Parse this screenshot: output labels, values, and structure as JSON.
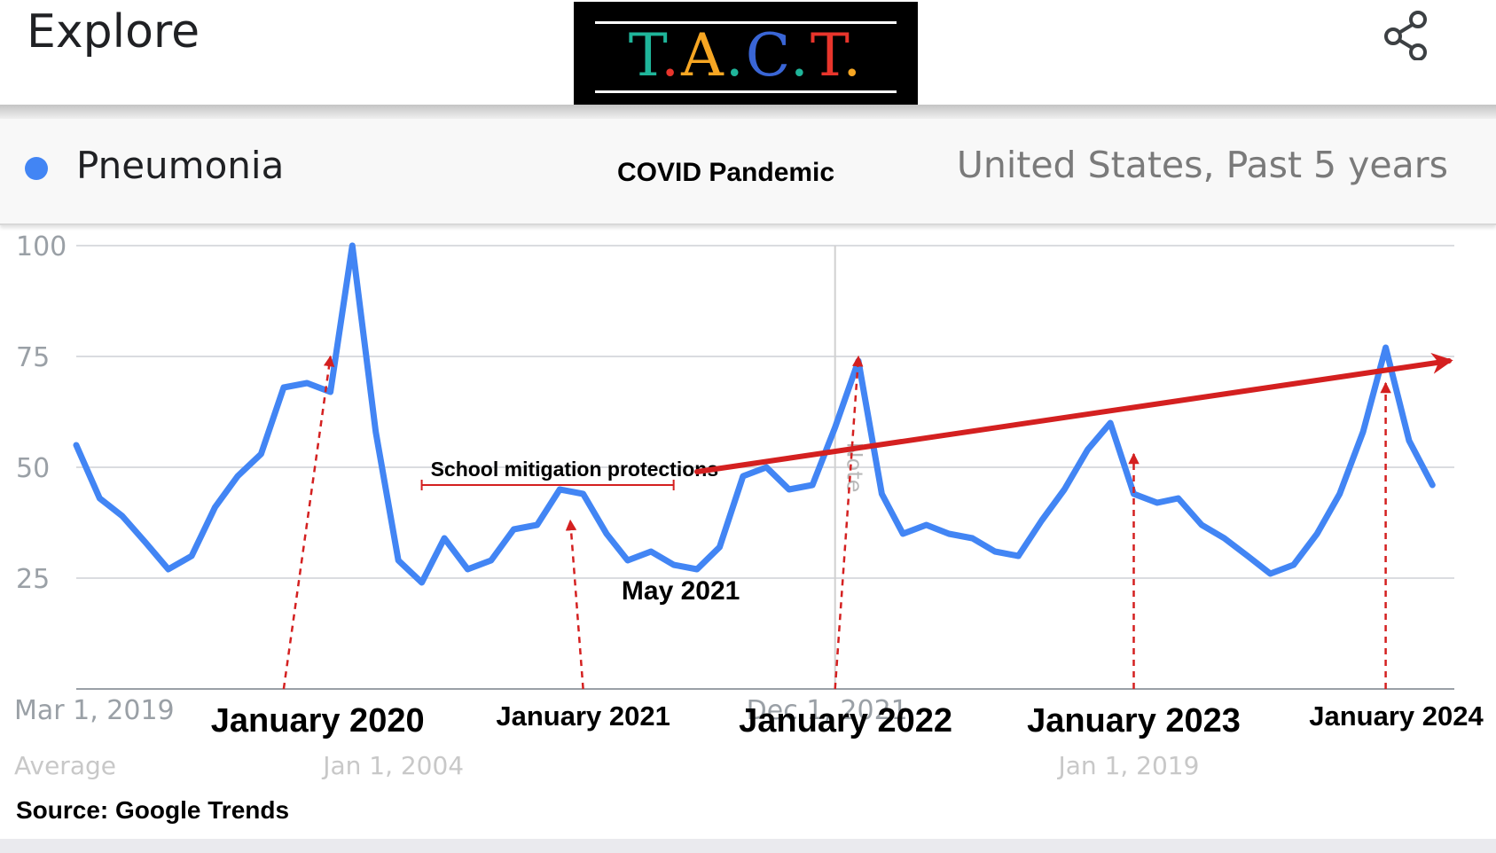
{
  "header": {
    "title": "Explore",
    "logo_text": "T.A.C.T.",
    "logo_colors": [
      "#1fb59a",
      "#e8352c",
      "#f6a623",
      "#1fb59a",
      "#3a66d6"
    ],
    "share_icon": "share-icon"
  },
  "legend": {
    "term": "Pneumonia",
    "term_color": "#4285f4",
    "scope": "United States, Past 5 years"
  },
  "chart_data": {
    "type": "line",
    "title": "COVID Pandemic",
    "xlabel": "",
    "ylabel": "",
    "ylim": [
      0,
      100
    ],
    "yticks": [
      25,
      50,
      75,
      100
    ],
    "grid": true,
    "x_range": [
      "2019-03-01",
      "2024-03-01"
    ],
    "x_tick_labels": [
      {
        "text": "Mar 1, 2019",
        "date": "2019-03-01"
      },
      {
        "text": "Dec 1, 2021",
        "date": "2021-12-01"
      }
    ],
    "series": [
      {
        "name": "Pneumonia",
        "color": "#4285f4",
        "points": [
          [
            "2019-03-01",
            55
          ],
          [
            "2019-04-01",
            43
          ],
          [
            "2019-05-01",
            39
          ],
          [
            "2019-06-01",
            33
          ],
          [
            "2019-07-01",
            27
          ],
          [
            "2019-08-01",
            30
          ],
          [
            "2019-09-01",
            41
          ],
          [
            "2019-10-01",
            48
          ],
          [
            "2019-11-01",
            53
          ],
          [
            "2019-12-01",
            68
          ],
          [
            "2020-01-01",
            69
          ],
          [
            "2020-02-01",
            67
          ],
          [
            "2020-03-01",
            100
          ],
          [
            "2020-04-01",
            58
          ],
          [
            "2020-05-01",
            29
          ],
          [
            "2020-06-01",
            24
          ],
          [
            "2020-07-01",
            34
          ],
          [
            "2020-08-01",
            27
          ],
          [
            "2020-09-01",
            29
          ],
          [
            "2020-10-01",
            36
          ],
          [
            "2020-11-01",
            37
          ],
          [
            "2020-12-01",
            45
          ],
          [
            "2021-01-01",
            44
          ],
          [
            "2021-02-01",
            35
          ],
          [
            "2021-03-01",
            29
          ],
          [
            "2021-04-01",
            31
          ],
          [
            "2021-05-01",
            28
          ],
          [
            "2021-06-01",
            27
          ],
          [
            "2021-07-01",
            32
          ],
          [
            "2021-08-01",
            48
          ],
          [
            "2021-09-01",
            50
          ],
          [
            "2021-10-01",
            45
          ],
          [
            "2021-11-01",
            46
          ],
          [
            "2021-12-01",
            59
          ],
          [
            "2022-01-01",
            74
          ],
          [
            "2022-02-01",
            44
          ],
          [
            "2022-03-01",
            35
          ],
          [
            "2022-04-01",
            37
          ],
          [
            "2022-05-01",
            35
          ],
          [
            "2022-06-01",
            34
          ],
          [
            "2022-07-01",
            31
          ],
          [
            "2022-08-01",
            30
          ],
          [
            "2022-09-01",
            38
          ],
          [
            "2022-10-01",
            45
          ],
          [
            "2022-11-01",
            54
          ],
          [
            "2022-12-01",
            60
          ],
          [
            "2023-01-01",
            44
          ],
          [
            "2023-02-01",
            42
          ],
          [
            "2023-03-01",
            43
          ],
          [
            "2023-04-01",
            37
          ],
          [
            "2023-05-01",
            34
          ],
          [
            "2023-06-01",
            30
          ],
          [
            "2023-07-01",
            26
          ],
          [
            "2023-08-01",
            28
          ],
          [
            "2023-09-01",
            35
          ],
          [
            "2023-10-01",
            44
          ],
          [
            "2023-11-01",
            58
          ],
          [
            "2023-12-01",
            77
          ],
          [
            "2024-01-01",
            56
          ],
          [
            "2024-02-01",
            46
          ]
        ]
      }
    ],
    "faded_labels": [
      {
        "text": "Average",
        "date": "2019-03-01"
      },
      {
        "text": "Jan 1, 2004",
        "date": "2020-05-01"
      },
      {
        "text": "Jan 1, 2019",
        "date": "2023-01-01"
      }
    ],
    "note_label": {
      "text": "Note",
      "date": "2021-12-01",
      "value": 50
    },
    "annotations": {
      "arrow_color": "#d42020",
      "span_label": {
        "text": "School  mitigation  protections",
        "from": "2020-06-01",
        "to": "2021-05-01",
        "value": 46
      },
      "point_label": {
        "text": "May 2021",
        "date": "2021-05-01",
        "value": 21
      },
      "trend_arrow": {
        "from": [
          "2021-06-01",
          49
        ],
        "to": [
          "2024-03-01",
          74
        ]
      },
      "markers": [
        {
          "text": "January  2020",
          "label_date": "2020-01-15",
          "from": [
            "2019-12-01",
            0
          ],
          "to": [
            "2020-02-01",
            75
          ],
          "size": "large"
        },
        {
          "text": "January  2021",
          "label_date": "2021-01-01",
          "from": [
            "2021-01-01",
            0
          ],
          "to": [
            "2020-12-15",
            38
          ],
          "size": "small"
        },
        {
          "text": "January  2022",
          "label_date": "2021-12-15",
          "from": [
            "2021-12-01",
            0
          ],
          "to": [
            "2022-01-01",
            75
          ],
          "size": "large"
        },
        {
          "text": "January  2023",
          "label_date": "2023-01-01",
          "from": [
            "2023-01-01",
            0
          ],
          "to": [
            "2023-01-01",
            53
          ],
          "size": "large"
        },
        {
          "text": "January  2024",
          "label_date": "2023-12-15",
          "from": [
            "2023-12-01",
            0
          ],
          "to": [
            "2023-12-01",
            69
          ],
          "size": "small"
        }
      ]
    }
  },
  "footer": {
    "source": "Source: Google Trends"
  }
}
